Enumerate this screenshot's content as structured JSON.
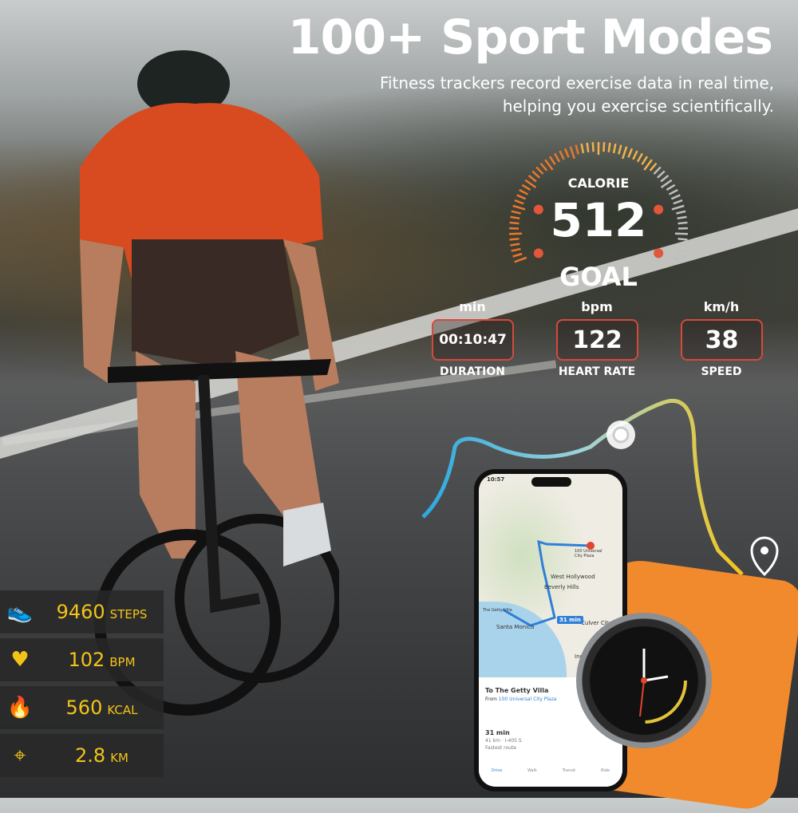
{
  "headline": {
    "title": "100+ Sport Modes",
    "subtitle_line1": "Fitness trackers record exercise data in real time,",
    "subtitle_line2": "helping you exercise scientifically."
  },
  "gauge": {
    "label": "CALORIE",
    "value": "512",
    "caption": "GOAL"
  },
  "metrics": [
    {
      "unit": "min",
      "value": "00:10:47",
      "label": "DURATION"
    },
    {
      "unit": "bpm",
      "value": "122",
      "label": "HEART RATE"
    },
    {
      "unit": "km/h",
      "value": "38",
      "label": "SPEED"
    }
  ],
  "stats": [
    {
      "icon": "shoe-icon",
      "value": "9460",
      "unit": "STEPS"
    },
    {
      "icon": "heart-pulse-icon",
      "value": "102",
      "unit": "BPM"
    },
    {
      "icon": "flame-icon",
      "value": "560",
      "unit": "KCAL"
    },
    {
      "icon": "location-pin-icon",
      "value": "2.8",
      "unit": "KM"
    }
  ],
  "phone": {
    "time": "10:57",
    "destination": "To The Getty Villa",
    "from_label": "From",
    "from_place": "100 Universal City Plaza",
    "eta": "31 min",
    "route": "41 km · I-405 S",
    "route_note": "Fastest route",
    "map_badge": "31 min",
    "map_labels": [
      "100 Universal City Plaza",
      "West Hollywood",
      "Beverly Hills",
      "The Getty Villa",
      "Santa Monica",
      "Culver City",
      "Inglewood"
    ],
    "tabs": [
      "Drive",
      "Walk",
      "Transit",
      "Ride"
    ]
  },
  "colors": {
    "accent": "#f2c418",
    "metric_border": "#d64a3a",
    "strap": "#f08a2c",
    "route_start": "#2aa8e0",
    "route_end": "#f5c518"
  }
}
